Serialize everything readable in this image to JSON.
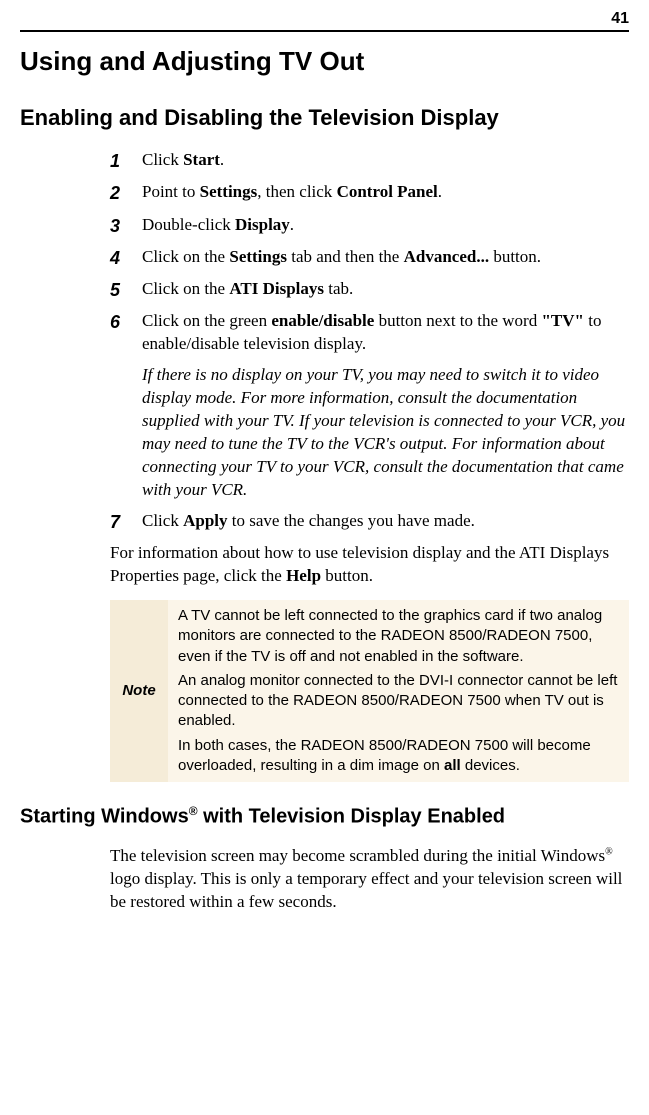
{
  "page_number": "41",
  "title": "Using and Adjusting TV Out",
  "section1_title": "Enabling and Disabling the Television Display",
  "steps": {
    "num1": "1",
    "text1_a": "Click ",
    "text1_b": "Start",
    "text1_c": ".",
    "num2": "2",
    "text2_a": "Point to ",
    "text2_b": "Settings",
    "text2_c": ", then click ",
    "text2_d": "Control Panel",
    "text2_e": ".",
    "num3": "3",
    "text3_a": "Double-click ",
    "text3_b": "Display",
    "text3_c": ".",
    "num4": "4",
    "text4_a": "Click on the ",
    "text4_b": "Settings",
    "text4_c": " tab and then the ",
    "text4_d": "Advanced...",
    "text4_e": " button.",
    "num5": "5",
    "text5_a": "Click on the ",
    "text5_b": "ATI Displays",
    "text5_c": " tab.",
    "num6": "6",
    "text6_a": "Click on the green ",
    "text6_b": "enable/disable",
    "text6_c": " button next to the word ",
    "text6_d": "\"TV\"",
    "text6_e": " to enable/disable television display.",
    "note6": "If there is no display on your TV, you may need to switch it to video display mode. For more information, consult the documentation supplied with your TV. If your television is connected to your VCR, you may need to tune the TV to the VCR's output. For information about connecting your TV to your VCR, consult the documentation that came with your VCR.",
    "num7": "7",
    "text7_a": "Click ",
    "text7_b": "Apply",
    "text7_c": " to save the changes you have made."
  },
  "help_para_a": "For information about how to use television display and the ATI Displays Properties page, click the ",
  "help_para_b": "Help",
  "help_para_c": " button.",
  "note_label": "Note",
  "note_body1": "A TV cannot be left connected to the graphics card if two analog monitors are connected to the RADEON 8500/RADEON 7500, even if the TV is off and not enabled in the software.",
  "note_body2": "An analog monitor connected to the DVI-I connector cannot be left connected to the RADEON 8500/RADEON 7500 when TV out is enabled.",
  "note_body3_a": "In both cases, the RADEON 8500/RADEON 7500 will become overloaded, resulting in a dim image on ",
  "note_body3_b": "all",
  "note_body3_c": " devices.",
  "section2_a": "Starting Windows",
  "section2_sup": "®",
  "section2_b": " with Television Display Enabled",
  "closing_a": "The television screen may become scrambled during the initial Windows",
  "closing_sup": "®",
  "closing_b": " logo display. This is only a temporary effect and your television screen will be restored within a few seconds.",
  "colors": {
    "note_label_bg": "#f5ecd8",
    "note_body_bg": "#fbf5e9",
    "text": "#000000",
    "bg": "#ffffff",
    "rule": "#000000"
  },
  "fonts": {
    "heading_family": "Helvetica, Arial, sans-serif",
    "body_family": "Times New Roman, Times, serif",
    "h1_size_pt": 20,
    "h2_size_pt": 17,
    "h3_size_pt": 15,
    "body_size_pt": 13,
    "note_size_pt": 11
  }
}
